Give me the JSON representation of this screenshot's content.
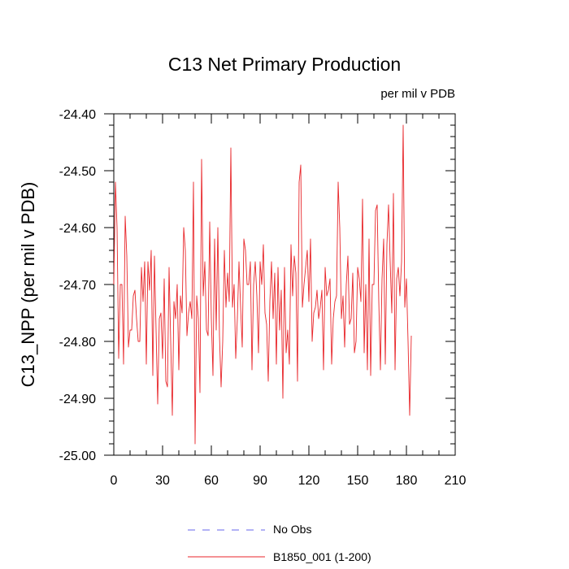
{
  "chart_data": {
    "type": "line",
    "title": "C13 Net Primary Production",
    "subtitle_right": "per mil v PDB",
    "ylabel": "C13_NPP  (per mil v PDB)",
    "xlabel": "",
    "xlim": [
      0,
      210
    ],
    "ylim": [
      -25.0,
      -24.4
    ],
    "x_ticks": [
      0,
      30,
      60,
      90,
      120,
      150,
      180,
      210
    ],
    "x_tick_labels": [
      "0",
      "30",
      "60",
      "90",
      "120",
      "150",
      "180",
      "210"
    ],
    "y_ticks": [
      -24.4,
      -24.5,
      -24.6,
      -24.7,
      -24.8,
      -24.9,
      -25.0
    ],
    "y_tick_labels": [
      "-24.40",
      "-24.50",
      "-24.60",
      "-24.70",
      "-24.80",
      "-24.90",
      "-25.00"
    ],
    "legend": [
      {
        "label": "No Obs",
        "color": "#6666ee",
        "style": "dashed"
      },
      {
        "label": "B1850_001 (1-200)",
        "color": "#e8262a",
        "style": "solid"
      }
    ],
    "series": [
      {
        "name": "B1850_001 (1-200)",
        "color": "#e8262a",
        "x_start": 0,
        "values": [
          -24.7,
          -24.52,
          -24.6,
          -24.83,
          -24.7,
          -24.7,
          -24.84,
          -24.58,
          -24.65,
          -24.81,
          -24.78,
          -24.78,
          -24.72,
          -24.71,
          -24.76,
          -24.8,
          -24.8,
          -24.67,
          -24.73,
          -24.66,
          -24.84,
          -24.66,
          -24.71,
          -24.64,
          -24.86,
          -24.65,
          -24.78,
          -24.91,
          -24.76,
          -24.75,
          -24.83,
          -24.69,
          -24.87,
          -24.88,
          -24.67,
          -24.8,
          -24.93,
          -24.73,
          -24.76,
          -24.7,
          -24.85,
          -24.72,
          -24.75,
          -24.6,
          -24.64,
          -24.79,
          -24.75,
          -24.73,
          -24.76,
          -24.52,
          -24.98,
          -24.72,
          -24.76,
          -24.89,
          -24.48,
          -24.72,
          -24.66,
          -24.78,
          -24.79,
          -24.59,
          -24.76,
          -24.86,
          -24.62,
          -24.78,
          -24.6,
          -24.79,
          -24.88,
          -24.8,
          -24.64,
          -24.74,
          -24.68,
          -24.73,
          -24.46,
          -24.74,
          -24.7,
          -24.83,
          -24.76,
          -24.66,
          -24.74,
          -24.81,
          -24.62,
          -24.64,
          -24.7,
          -24.7,
          -24.66,
          -24.85,
          -24.7,
          -24.66,
          -24.72,
          -24.82,
          -24.66,
          -24.7,
          -24.63,
          -24.75,
          -24.77,
          -24.87,
          -24.73,
          -24.66,
          -24.76,
          -24.68,
          -24.84,
          -24.67,
          -24.78,
          -24.71,
          -24.9,
          -24.67,
          -24.82,
          -24.78,
          -24.84,
          -24.63,
          -24.72,
          -24.65,
          -24.68,
          -24.87,
          -24.52,
          -24.49,
          -24.74,
          -24.7,
          -24.67,
          -24.64,
          -24.73,
          -24.62,
          -24.8,
          -24.75,
          -24.74,
          -24.71,
          -24.76,
          -24.74,
          -24.71,
          -24.85,
          -24.67,
          -24.72,
          -24.71,
          -24.69,
          -24.84,
          -24.76,
          -24.73,
          -24.72,
          -24.52,
          -24.6,
          -24.76,
          -24.72,
          -24.81,
          -24.7,
          -24.65,
          -24.77,
          -24.76,
          -24.68,
          -24.82,
          -24.8,
          -24.67,
          -24.69,
          -24.73,
          -24.55,
          -24.82,
          -24.7,
          -24.85,
          -24.62,
          -24.86,
          -24.7,
          -24.7,
          -24.57,
          -24.56,
          -24.73,
          -24.85,
          -24.69,
          -24.62,
          -24.84,
          -24.63,
          -24.56,
          -24.66,
          -24.75,
          -24.54,
          -24.85,
          -24.69,
          -24.67,
          -24.72,
          -24.66,
          -24.42,
          -24.74,
          -24.69,
          -24.8,
          -24.93,
          -24.79
        ]
      }
    ]
  }
}
